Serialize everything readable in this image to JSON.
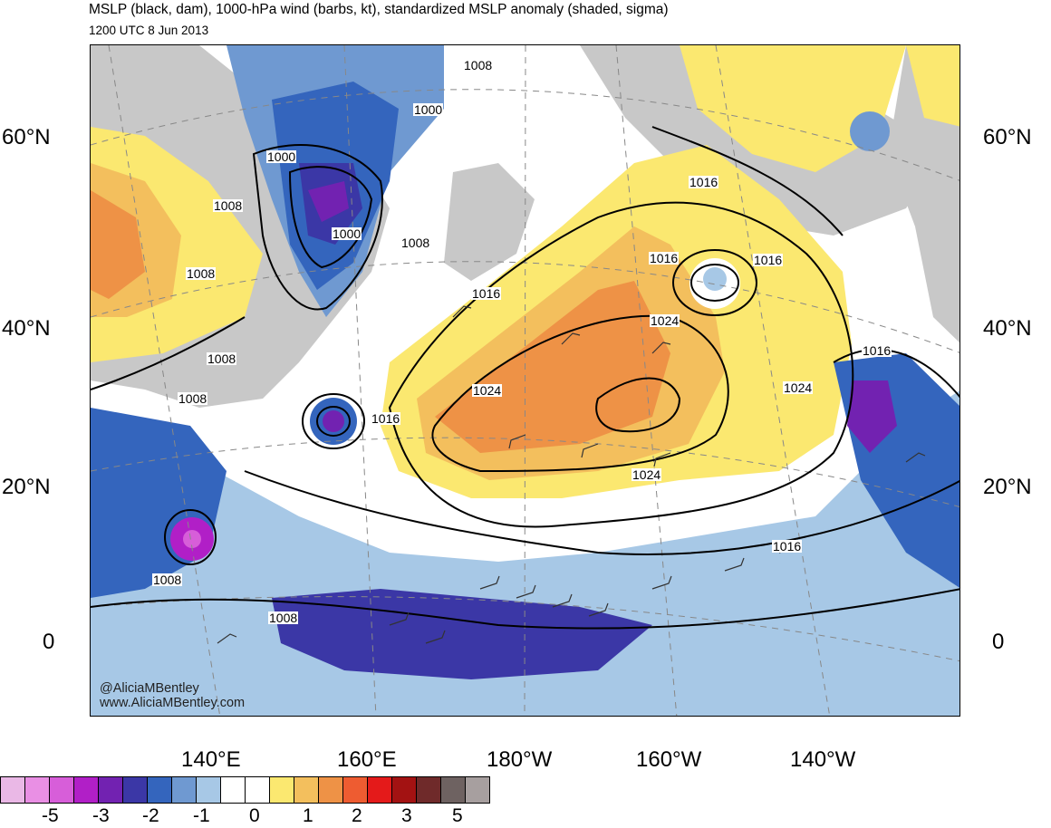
{
  "header": {
    "title": "MSLP (black, dam), 1000-hPa wind (barbs, kt), standardized MSLP anomaly (shaded, sigma)",
    "subtitle": "1200 UTC 8 Jun 2013"
  },
  "axes": {
    "lat_left": [
      "60°N",
      "40°N",
      "20°N",
      "0"
    ],
    "lat_right": [
      "60°N",
      "40°N",
      "20°N",
      "0"
    ],
    "lon_bottom": [
      "140°E",
      "160°E",
      "180°W",
      "160°W",
      "140°W"
    ]
  },
  "contour_labels": {
    "l1008_a": "1008",
    "l1000_a": "1000",
    "l1000_b": "1000",
    "l1008_b": "1008",
    "l1000_c": "1000",
    "l1008_c": "1008",
    "l1008_d": "1008",
    "l1008_e": "1008",
    "l1008_f": "1008",
    "l1016_a": "1016",
    "l1016_b": "1016",
    "l1016_c": "1016",
    "l1016_d": "1016",
    "l1016_e": "1016",
    "l1024_a": "1024",
    "l1024_b": "1024",
    "l1024_c": "1024",
    "l1024_d": "1024",
    "l1016_f": "1016",
    "l1016_g": "1016",
    "l1008_g": "1008",
    "l1008_h": "1008"
  },
  "credit": {
    "line1": "@AliciaMBentley",
    "line2": "www.AliciaMBentley.com"
  },
  "colorbar": {
    "colors": [
      "#eab8e6",
      "#e98fe4",
      "#d75ed9",
      "#b11fc7",
      "#7222b1",
      "#3b37a6",
      "#3465bd",
      "#6f99d1",
      "#a7c8e6",
      "#ffffff",
      "#ffffff",
      "#fbe870",
      "#f3bf5d",
      "#ee9246",
      "#ee5c31",
      "#e41a1a",
      "#a31212",
      "#6f2a2a",
      "#6e6261",
      "#a79f9f"
    ],
    "labels": [
      "-5",
      "-3",
      "-2",
      "-1",
      "0",
      "1",
      "2",
      "3",
      "5"
    ]
  },
  "legend_colors": {
    "land": "#c8c8c8",
    "ocean": "#ffffff"
  }
}
